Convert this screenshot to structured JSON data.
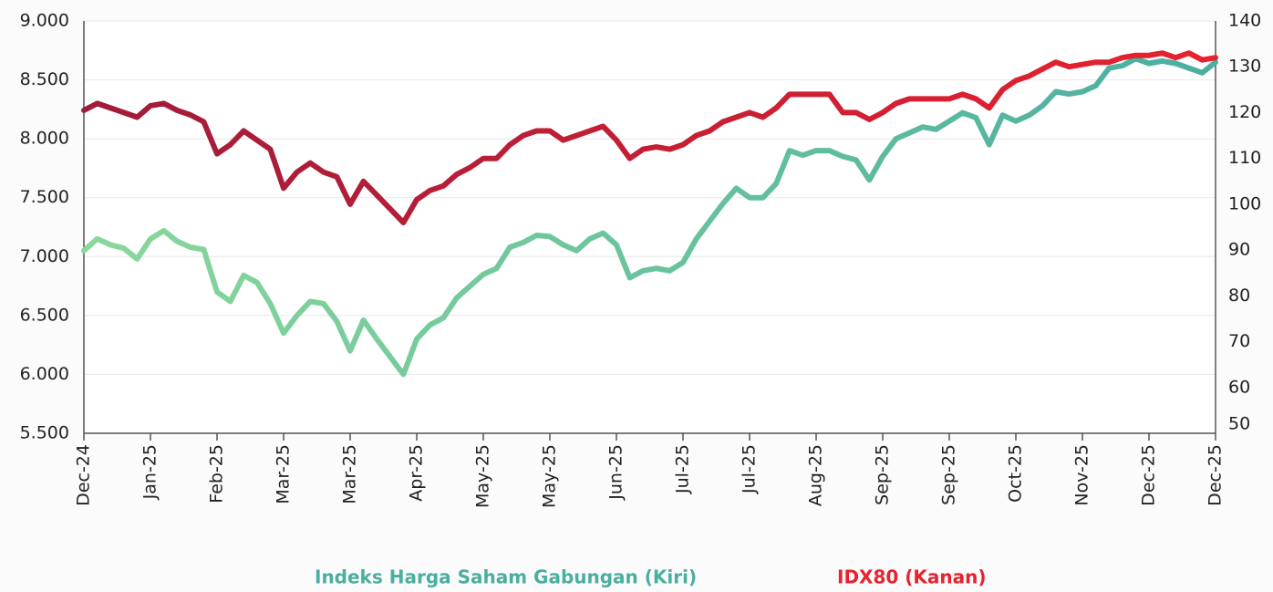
{
  "chart_data": {
    "type": "line",
    "categories": [
      "Dec-24",
      null,
      null,
      null,
      null,
      "Jan-25",
      null,
      null,
      null,
      null,
      "Feb-25",
      null,
      null,
      null,
      null,
      "Mar-25",
      null,
      null,
      null,
      null,
      "Mar-25",
      null,
      null,
      null,
      null,
      "Apr-25",
      null,
      null,
      null,
      null,
      "May-25",
      null,
      null,
      null,
      null,
      "May-25",
      null,
      null,
      null,
      null,
      "Jun-25",
      null,
      null,
      null,
      null,
      "Jul-25",
      null,
      null,
      null,
      null,
      "Jul-25",
      null,
      null,
      null,
      null,
      "Aug-25",
      null,
      null,
      null,
      null,
      "Sep-25",
      null,
      null,
      null,
      null,
      "Sep-25",
      null,
      null,
      null,
      null,
      "Oct-25",
      null,
      null,
      null,
      null,
      "Nov-25",
      null,
      null,
      null,
      null,
      "Dec-25",
      null,
      null,
      null,
      null,
      "Dec-25"
    ],
    "series": [
      {
        "name": "Indeks Harga Saham Gabungan (Kiri)",
        "color": "#4aaea0",
        "colors": [
          "#8ad89a",
          "#4aaea0"
        ],
        "values": [
          7050,
          7150,
          7100,
          7070,
          6980,
          7150,
          7220,
          7130,
          7080,
          7060,
          6700,
          6620,
          6840,
          6780,
          6600,
          6350,
          6500,
          6620,
          6600,
          6450,
          6200,
          6460,
          6300,
          6150,
          6000,
          6300,
          6420,
          6480,
          6650,
          6750,
          6850,
          6900,
          7080,
          7120,
          7180,
          7170,
          7100,
          7050,
          7150,
          7200,
          7100,
          6820,
          6880,
          6900,
          6880,
          6950,
          7150,
          7300,
          7450,
          7580,
          7500,
          7500,
          7620,
          7900,
          7860,
          7900,
          7900,
          7850,
          7820,
          7650,
          7850,
          8000,
          8050,
          8100,
          8080,
          8150,
          8220,
          8180,
          7950,
          8200,
          8150,
          8200,
          8280,
          8400,
          8380,
          8400,
          8450,
          8600,
          8620,
          8680,
          8640,
          8660,
          8640,
          8600,
          8560,
          8650
        ]
      },
      {
        "name": "IDX80 (Kanan)",
        "color": "#e8222e",
        "colors": [
          "#a01c3b",
          "#e8222e"
        ],
        "axis": "y2",
        "values": [
          120.5,
          122,
          121,
          120,
          119,
          121.5,
          122,
          120.5,
          119.5,
          118,
          111,
          113,
          116,
          114,
          112,
          103.5,
          107,
          109,
          107,
          106,
          100,
          105,
          102,
          99,
          96,
          101,
          103,
          104,
          106.5,
          108,
          110,
          110,
          113,
          115,
          116,
          116,
          114,
          115,
          116,
          117,
          114,
          110,
          112,
          112.5,
          112,
          113,
          115,
          116,
          118,
          119,
          120,
          119,
          121,
          124,
          124,
          124,
          124,
          120,
          120,
          118.5,
          120,
          122,
          123,
          123,
          123,
          123,
          124,
          123,
          121,
          125,
          127,
          128,
          129.5,
          131,
          130,
          130.5,
          131,
          131,
          132,
          132.5,
          132.5,
          133,
          132,
          133,
          131.5,
          132
        ]
      }
    ],
    "ylim": [
      5500,
      9000
    ],
    "yticks": [
      {
        "value": 5500,
        "label": "5.500"
      },
      {
        "value": 6000,
        "label": "6.000"
      },
      {
        "value": 6500,
        "label": "6.500"
      },
      {
        "value": 7000,
        "label": "7.000"
      },
      {
        "value": 7500,
        "label": "7.500"
      },
      {
        "value": 8000,
        "label": "8.000"
      },
      {
        "value": 8500,
        "label": "8.500"
      },
      {
        "value": 9000,
        "label": "9.000"
      }
    ],
    "y2lim": [
      50,
      140
    ],
    "y2ticks": [
      50,
      60,
      70,
      80,
      90,
      100,
      110,
      120,
      130,
      140
    ],
    "grid": true,
    "legend": "bottom"
  }
}
